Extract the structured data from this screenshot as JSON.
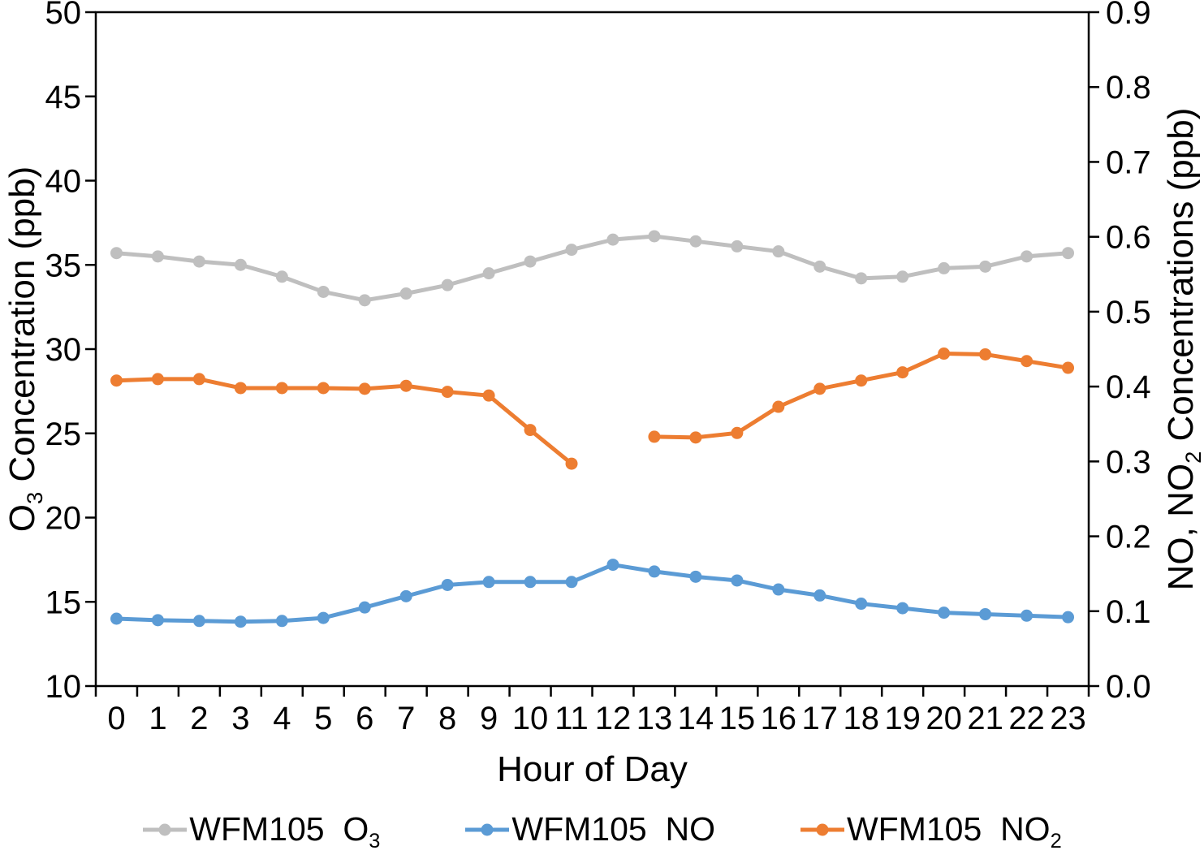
{
  "figure": {
    "background": "#FFFFFF",
    "text_color": "#000000",
    "axis_color": "#000000"
  },
  "chart_data": {
    "type": "line",
    "title": "",
    "xlabel": "Hour of Day",
    "x": [
      0,
      1,
      2,
      3,
      4,
      5,
      6,
      7,
      8,
      9,
      10,
      11,
      12,
      13,
      14,
      15,
      16,
      17,
      18,
      19,
      20,
      21,
      22,
      23
    ],
    "grid": false,
    "legend_position": "bottom",
    "left_axis": {
      "label": "O₃ Concentration (ppb)",
      "min": 10,
      "max": 50,
      "tick_step": 5
    },
    "right_axis": {
      "label": "NO, NO₂ Concentrations (ppb)",
      "min": 0.0,
      "max": 0.9,
      "tick_step": 0.1,
      "decimals": 1
    },
    "series": [
      {
        "name": "WFM105  O₃",
        "axis": "left",
        "color": "#BFBFBF",
        "values": [
          35.7,
          35.5,
          35.2,
          35.0,
          34.3,
          33.4,
          32.9,
          33.3,
          33.8,
          34.5,
          35.2,
          35.9,
          36.5,
          36.7,
          36.4,
          36.1,
          35.8,
          34.9,
          34.2,
          34.3,
          34.8,
          34.9,
          35.5,
          35.7
        ]
      },
      {
        "name": "WFM105  NO",
        "axis": "right",
        "color": "#5B9BD5",
        "values": [
          0.09,
          0.088,
          0.087,
          0.086,
          0.087,
          0.091,
          0.105,
          0.12,
          0.135,
          0.139,
          0.139,
          0.139,
          0.162,
          0.153,
          0.146,
          0.141,
          0.129,
          0.121,
          0.11,
          0.104,
          0.098,
          0.096,
          0.094,
          0.092
        ]
      },
      {
        "name": "WFM105  NO₂",
        "axis": "right",
        "color": "#ED7D31",
        "values": [
          0.408,
          0.41,
          0.41,
          0.398,
          0.398,
          0.398,
          0.397,
          0.401,
          0.393,
          0.388,
          0.342,
          0.297,
          null,
          0.333,
          0.332,
          0.338,
          0.373,
          0.397,
          0.408,
          0.419,
          0.444,
          0.443,
          0.434,
          0.425
        ]
      }
    ]
  }
}
